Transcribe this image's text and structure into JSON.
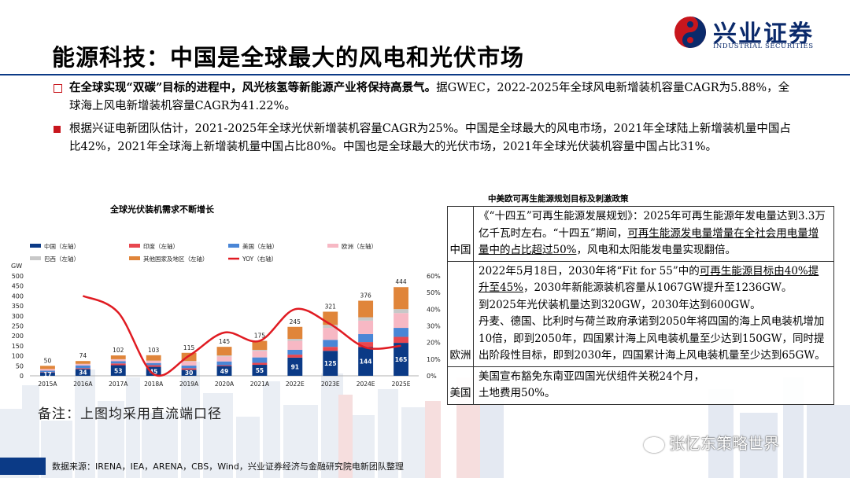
{
  "header": {
    "title": "能源科技：中国是全球最大的风电和光伏市场",
    "logo_name": "兴业证券",
    "logo_sub": "INDUSTRIAL SECURITIES"
  },
  "bullets": {
    "b1_bold": "在全球实现“双碳”目标的进程中，风光核氢等新能源产业将保持高景气。",
    "b1_rest": "据GWEC，2022-2025年全球风电新增装机容量CAGR为5.88%，全球海上风电新增装机容量CAGR为41.22%。",
    "b2": "根据兴证电新团队估计，2021-2025年全球光伏新增装机容量CAGR为25%。中国是全球最大的风电市场，2021年全球陆上新增装机量中国占比42%，2021年全球海上新增装机量中国占比80%。中国也是全球最大的光伏市场，2021年全球光伏装机容量中国占比31%。"
  },
  "chart_data": {
    "type": "bar",
    "title": "全球光伏装机需求不断增长",
    "ylabel_left": "GW",
    "ylim_left": [
      0,
      500
    ],
    "ylim_right": [
      0,
      60
    ],
    "left_ticks": [
      "500",
      "450",
      "400",
      "350",
      "300",
      "250",
      "200",
      "150",
      "100",
      "50",
      "0"
    ],
    "right_ticks": [
      "60%",
      "50%",
      "40%",
      "30%",
      "20%",
      "10%",
      "0%"
    ],
    "categories": [
      "2015A",
      "2016A",
      "2017A",
      "2018A",
      "2019A",
      "2020A",
      "2021A",
      "2022E",
      "2023E",
      "2024E",
      "2025E"
    ],
    "totals": [
      50,
      74,
      102,
      103,
      115,
      145,
      175,
      245,
      321,
      376,
      444
    ],
    "china_labels": [
      "17",
      "34",
      "53",
      "45",
      "30",
      "49",
      "55",
      "91",
      "125",
      "144",
      "165"
    ],
    "legend": [
      "中国（左轴）",
      "印度（左轴）",
      "美国（左轴）",
      "欧洲（左轴）",
      "巴西（左轴）",
      "其他国家及地区（左轴）",
      "YOY（右轴）"
    ],
    "series": [
      {
        "name": "中国（左轴）",
        "color": "#0b3a86",
        "values": [
          17,
          34,
          53,
          45,
          30,
          49,
          55,
          91,
          125,
          144,
          165
        ]
      },
      {
        "name": "印度（左轴）",
        "color": "#e8474f",
        "values": [
          2,
          4,
          9,
          8,
          8,
          4,
          10,
          15,
          20,
          25,
          30
        ]
      },
      {
        "name": "美国（左轴）",
        "color": "#4a86d6",
        "values": [
          7,
          14,
          11,
          11,
          13,
          19,
          27,
          24,
          35,
          40,
          45
        ]
      },
      {
        "name": "欧洲（左轴）",
        "color": "#f7b8c4",
        "values": [
          8,
          7,
          9,
          11,
          21,
          25,
          33,
          45,
          60,
          67,
          74
        ]
      },
      {
        "name": "巴西（左轴）",
        "color": "#c8c8c8",
        "values": [
          0,
          1,
          1,
          1,
          2,
          5,
          5,
          10,
          15,
          17,
          20
        ]
      },
      {
        "name": "其他国家及地区（左轴）",
        "color": "#e0853a",
        "values": [
          16,
          14,
          19,
          27,
          41,
          43,
          45,
          60,
          66,
          83,
          110
        ]
      }
    ],
    "yoy": {
      "name": "YOY（右轴）",
      "color": "#e01b22",
      "values": [
        null,
        48,
        38,
        1,
        12,
        26,
        21,
        40,
        31,
        17,
        18
      ]
    },
    "note": "备注：上图均采用直流端口径"
  },
  "policy": {
    "title": "中美欧可再生能源规划目标及刺激政策",
    "china_label": "中国",
    "china_p1": "《“十四五”可再生能源发展规划》：2025年可再生能源年发电量达到3.3万亿千瓦时左右。“十四五”期间，",
    "china_ul": "可再生能源发电量增量在全社会用电量增量中的占比超过50%",
    "china_p2": "，风电和太阳能发电量实现翻倍。",
    "eu_label": "欧洲",
    "eu_p1a": "2022年5月18日，2030年将“Fit for 55”中的",
    "eu_p1_ul": "可再生能源目标由40%提升至45%",
    "eu_p1b": "，2030年新能源装机容量从1067GW提升至1236GW。",
    "eu_p2": "到2025年光伏装机量达到320GW，2030年达到600GW。",
    "eu_p3": "丹麦、德国、比利时与荷兰政府承诺到2050年将四国的海上风电装机增加10倍，即到2050年，四国累计海上风电装机量至少达到150GW，同时提出阶段性目标，即到2030年，四国累计海上风电装机量至少达到65GW。",
    "us_label": "美国",
    "us_p1": "美国宣布豁免东南亚四国光伏组件关税24个月，",
    "us_p2": "土地费用50%。"
  },
  "footer": {
    "source": "数据来源：IRENA，IEA，ARENA，CBS，Wind，兴业证券经济与金融研究院电新团队整理",
    "watermark": "张忆东策略世界"
  }
}
